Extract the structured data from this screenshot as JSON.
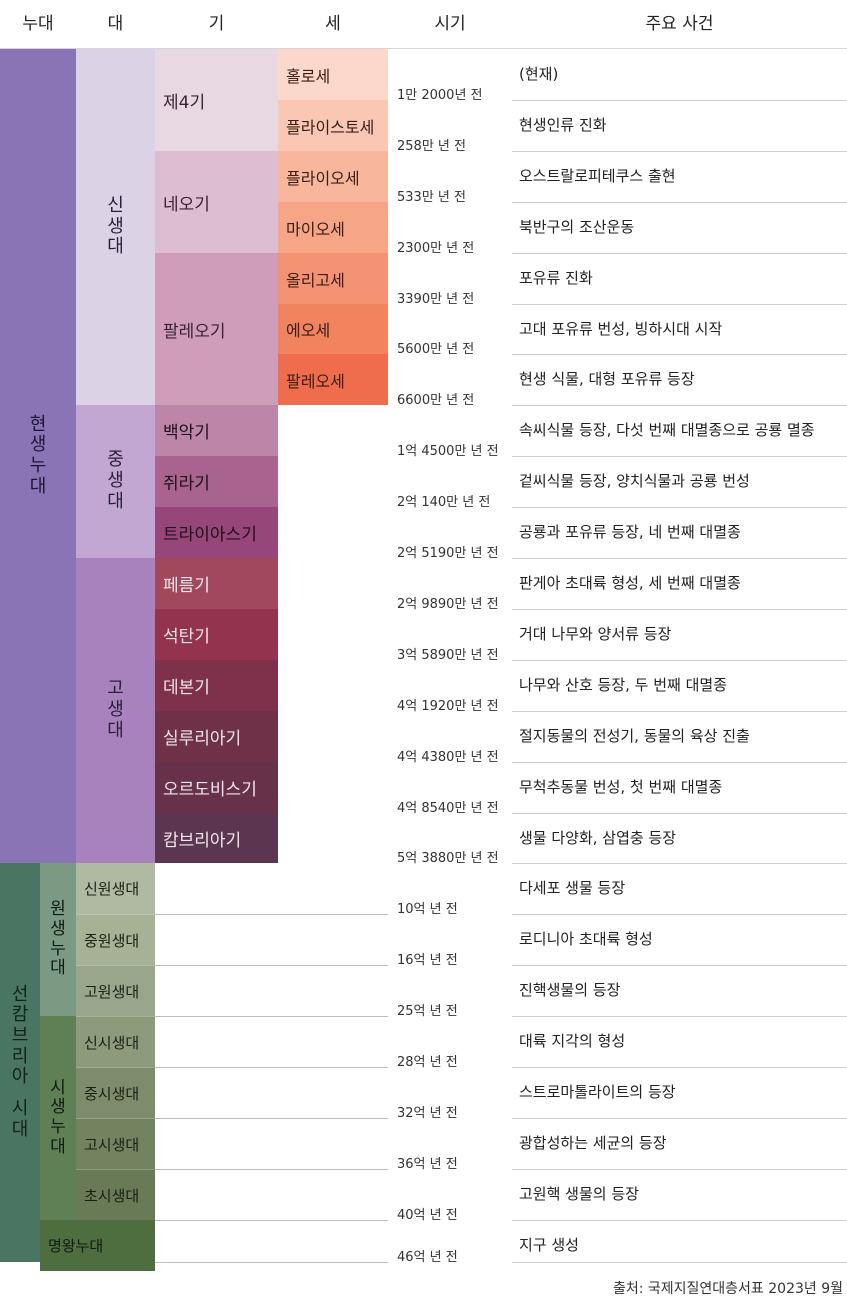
{
  "headers": [
    "누대",
    "대",
    "기",
    "세",
    "시기",
    "주요 사건"
  ],
  "eons": [
    {
      "name": "현생누대",
      "color": "#8a74b6"
    },
    {
      "name": "선캄브리아 시대",
      "color": "#4a7563"
    }
  ],
  "eras": [
    {
      "name": "신생대",
      "color": "#dcd2e6"
    },
    {
      "name": "중생대",
      "color": "#c2a7d2"
    },
    {
      "name": "고생대",
      "color": "#a782bc"
    }
  ],
  "precambrian_eons": [
    {
      "name": "원생누대",
      "color": "#7a9a84"
    },
    {
      "name": "시생누대",
      "color": "#5f7f55"
    },
    {
      "name": "명왕누대",
      "color": "#4f6e40"
    }
  ],
  "periods": [
    {
      "name": "제4기",
      "color": "#e8d8e2"
    },
    {
      "name": "네오기",
      "color": "#ddbdd2"
    },
    {
      "name": "팔레오기",
      "color": "#cf9cb9"
    },
    {
      "name": "백악기",
      "color": "#bd86a8"
    },
    {
      "name": "쥐라기",
      "color": "#a9638f"
    },
    {
      "name": "트라이아스기",
      "color": "#97467a"
    },
    {
      "name": "페름기",
      "color": "#a1485c"
    },
    {
      "name": "석탄기",
      "color": "#93334d"
    },
    {
      "name": "데본기",
      "color": "#7f304b"
    },
    {
      "name": "실루리아기",
      "color": "#6e3148"
    },
    {
      "name": "오르도비스기",
      "color": "#673149"
    },
    {
      "name": "캄브리아기",
      "color": "#5c3550"
    }
  ],
  "epochs": [
    {
      "name": "홀로세",
      "color": "#fbd8cb"
    },
    {
      "name": "플라이스토세",
      "color": "#f9c7b4"
    },
    {
      "name": "플라이오세",
      "color": "#f8b69c"
    },
    {
      "name": "마이오세",
      "color": "#f6a587"
    },
    {
      "name": "올리고세",
      "color": "#f39373"
    },
    {
      "name": "에오세",
      "color": "#f2835f"
    },
    {
      "name": "팔레오세",
      "color": "#ef6d4d"
    }
  ],
  "precambrian_eras": [
    {
      "name": "신원생대",
      "color": "#b0b9a2"
    },
    {
      "name": "중원생대",
      "color": "#a6b196"
    },
    {
      "name": "고원생대",
      "color": "#9aa68b"
    },
    {
      "name": "신시생대",
      "color": "#8e9a7c"
    },
    {
      "name": "중시생대",
      "color": "#7f8c6c"
    },
    {
      "name": "고시생대",
      "color": "#73825f"
    },
    {
      "name": "초시생대",
      "color": "#697a56"
    }
  ],
  "times": [
    "1만 2000년 전",
    "258만 년 전",
    "533만 년 전",
    "2300만 년 전",
    "3390만 년 전",
    "5600만 년 전",
    "6600만 년 전",
    "1억 4500만 년 전",
    "2억 140만 년 전",
    "2억 5190만 년 전",
    "2억 9890만 년 전",
    "3억 5890만 년 전",
    "4억 1920만 년 전",
    "4억 4380만 년 전",
    "4억 8540만 년 전",
    "5억 3880만 년 전",
    "10억 년 전",
    "16억 년 전",
    "25억 년 전",
    "28억 년 전",
    "32억 년 전",
    "36억 년 전",
    "40억 년 전",
    "46억 년 전"
  ],
  "events": [
    "(현재)",
    "현생인류 진화",
    "오스트랄로피테쿠스 출현",
    "북반구의 조산운동",
    "포유류 진화",
    "고대 포유류 번성, 빙하시대 시작",
    "현생 식물, 대형 포유류 등장",
    "속씨식물 등장, 다섯 번째 대멸종으로 공룡 멸종",
    "겉씨식물 등장, 양치식물과 공룡 번성",
    "공룡과 포유류 등장, 네 번째 대멸종",
    "판게아 초대륙 형성, 세 번째 대멸종",
    "거대 나무와 양서류 등장",
    "나무와 산호 등장, 두 번째 대멸종",
    "절지동물의 전성기, 동물의 육상 진출",
    "무척추동물 번성, 첫 번째 대멸종",
    "생물 다양화, 삼엽충 등장",
    "다세포 생물 등장",
    "로디니아 초대륙 형성",
    "진핵생물의 등장",
    "대륙 지각의 형성",
    "스트로마톨라이트의 등장",
    "광합성하는 세균의 등장",
    "고원핵 생물의 등장",
    "지구 생성"
  ],
  "source": "출처: 국제지질연대층서표 2023년 9월"
}
